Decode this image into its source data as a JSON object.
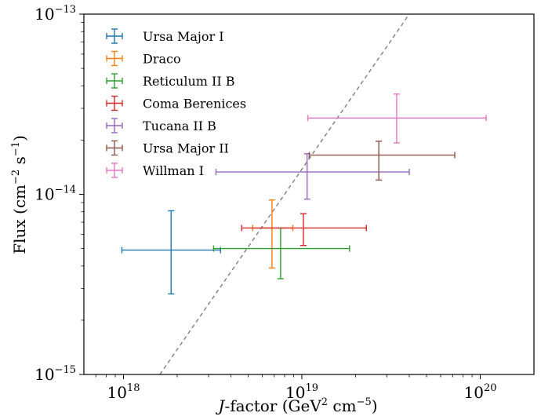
{
  "chart_data": {
    "type": "scatter",
    "title": "",
    "x_scale": "log",
    "y_scale": "log",
    "xlim": [
      6e+17,
      2e+20
    ],
    "ylim": [
      1e-15,
      1e-13
    ],
    "xlabel_prefix": "J",
    "xlabel_rest": "-factor (GeV",
    "xlabel_sup": "2",
    "xlabel_mid": " cm",
    "xlabel_sup2": "−5",
    "xlabel_end": ")",
    "ylabel_pre": "Flux (cm",
    "ylabel_sup": "−2",
    "ylabel_mid": " s",
    "ylabel_sup2": "−1",
    "ylabel_end": ")",
    "x_ticks": [
      {
        "value": 1e+18,
        "base": "10",
        "exp": "18"
      },
      {
        "value": 1e+19,
        "base": "10",
        "exp": "19"
      },
      {
        "value": 1e+20,
        "base": "10",
        "exp": "20"
      }
    ],
    "y_ticks": [
      {
        "value": 1e-15,
        "base": "10",
        "exp": "−15"
      },
      {
        "value": 1e-14,
        "base": "10",
        "exp": "−14"
      },
      {
        "value": 1e-13,
        "base": "10",
        "exp": "−13"
      }
    ],
    "grid": false,
    "legend_position": "upper-left",
    "reference_line": {
      "style": "dashed",
      "color": "#7f7f7f",
      "points": [
        [
          1.6e+18,
          1e-15
        ],
        [
          4e+19,
          1e-13
        ]
      ]
    },
    "series": [
      {
        "name": "Ursa Major I",
        "color": "#1f77b4",
        "x": 1.85e+18,
        "x_err": [
          9.8e+17,
          3.5e+18
        ],
        "y": 4.9e-15,
        "y_err": [
          2.8e-15,
          8.1e-15
        ]
      },
      {
        "name": "Draco",
        "color": "#ff7f0e",
        "x": 6.8e+18,
        "x_err": [
          5.3e+18,
          8.9e+18
        ],
        "y": 6.5e-15,
        "y_err": [
          3.9e-15,
          9.3e-15
        ]
      },
      {
        "name": "Reticulum II B",
        "color": "#2ca02c",
        "x": 7.6e+18,
        "x_err": [
          3.2e+18,
          1.85e+19
        ],
        "y": 5e-15,
        "y_err": [
          3.4e-15,
          6.5e-15
        ]
      },
      {
        "name": "Coma Berenices",
        "color": "#d62728",
        "x": 1.02e+19,
        "x_err": [
          4.6e+18,
          2.3e+19
        ],
        "y": 6.5e-15,
        "y_err": [
          5.2e-15,
          7.8e-15
        ]
      },
      {
        "name": "Tucana II B",
        "color": "#9467bd",
        "x": 1.07e+19,
        "x_err": [
          3.3e+18,
          4e+19
        ],
        "y": 1.33e-14,
        "y_err": [
          9.4e-15,
          1.68e-14
        ]
      },
      {
        "name": "Ursa Major II",
        "color": "#8c564b",
        "x": 2.7e+19,
        "x_err": [
          1.1e+19,
          7.2e+19
        ],
        "y": 1.65e-14,
        "y_err": [
          1.2e-14,
          1.97e-14
        ]
      },
      {
        "name": "Willman I",
        "color": "#e377c2",
        "x": 3.4e+19,
        "x_err": [
          1.08e+19,
          1.08e+20
        ],
        "y": 2.65e-14,
        "y_err": [
          1.93e-14,
          3.6e-14
        ]
      }
    ]
  }
}
